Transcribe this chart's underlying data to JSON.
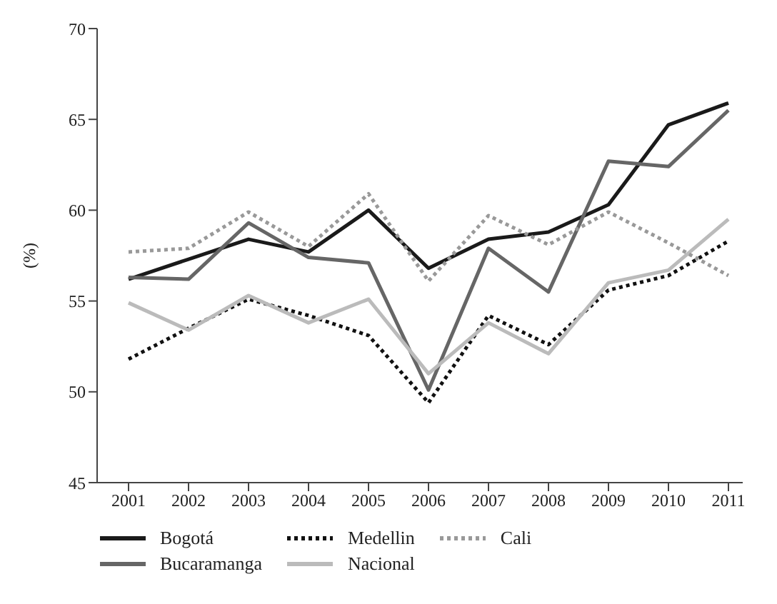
{
  "chart_data": {
    "type": "line",
    "ylabel": "(%)",
    "categories": [
      "2001",
      "2002",
      "2003",
      "2004",
      "2005",
      "2006",
      "2007",
      "2008",
      "2009",
      "2010",
      "2011"
    ],
    "ylim": [
      45,
      70
    ],
    "yticks": [
      45,
      50,
      55,
      60,
      65,
      70
    ],
    "grid": false,
    "legend": "bottom",
    "marker": "none",
    "series": [
      {
        "name": "Bogotá",
        "color": "#1a1a1a",
        "line_style": "solid",
        "values": [
          56.2,
          57.3,
          58.4,
          57.7,
          60.0,
          56.8,
          58.4,
          58.8,
          60.3,
          64.7,
          65.9
        ]
      },
      {
        "name": "Bucaramanga",
        "color": "#666666",
        "line_style": "solid",
        "values": [
          56.3,
          56.2,
          59.3,
          57.4,
          57.1,
          50.1,
          57.9,
          55.5,
          62.7,
          62.4,
          65.5
        ]
      },
      {
        "name": "Medellin",
        "color": "#111111",
        "line_style": "dotted",
        "values": [
          51.8,
          53.5,
          55.1,
          54.2,
          53.1,
          49.4,
          54.2,
          52.6,
          55.6,
          56.4,
          58.3
        ]
      },
      {
        "name": "Nacional",
        "color": "#bbbbbb",
        "line_style": "solid",
        "values": [
          54.9,
          53.4,
          55.3,
          53.8,
          55.1,
          51.0,
          53.8,
          52.1,
          56.0,
          56.7,
          59.5
        ]
      },
      {
        "name": "Cali",
        "color": "#999999",
        "line_style": "dotted",
        "values": [
          57.7,
          57.9,
          59.9,
          58.0,
          60.9,
          56.1,
          59.7,
          58.1,
          59.9,
          58.2,
          56.4
        ]
      }
    ]
  }
}
